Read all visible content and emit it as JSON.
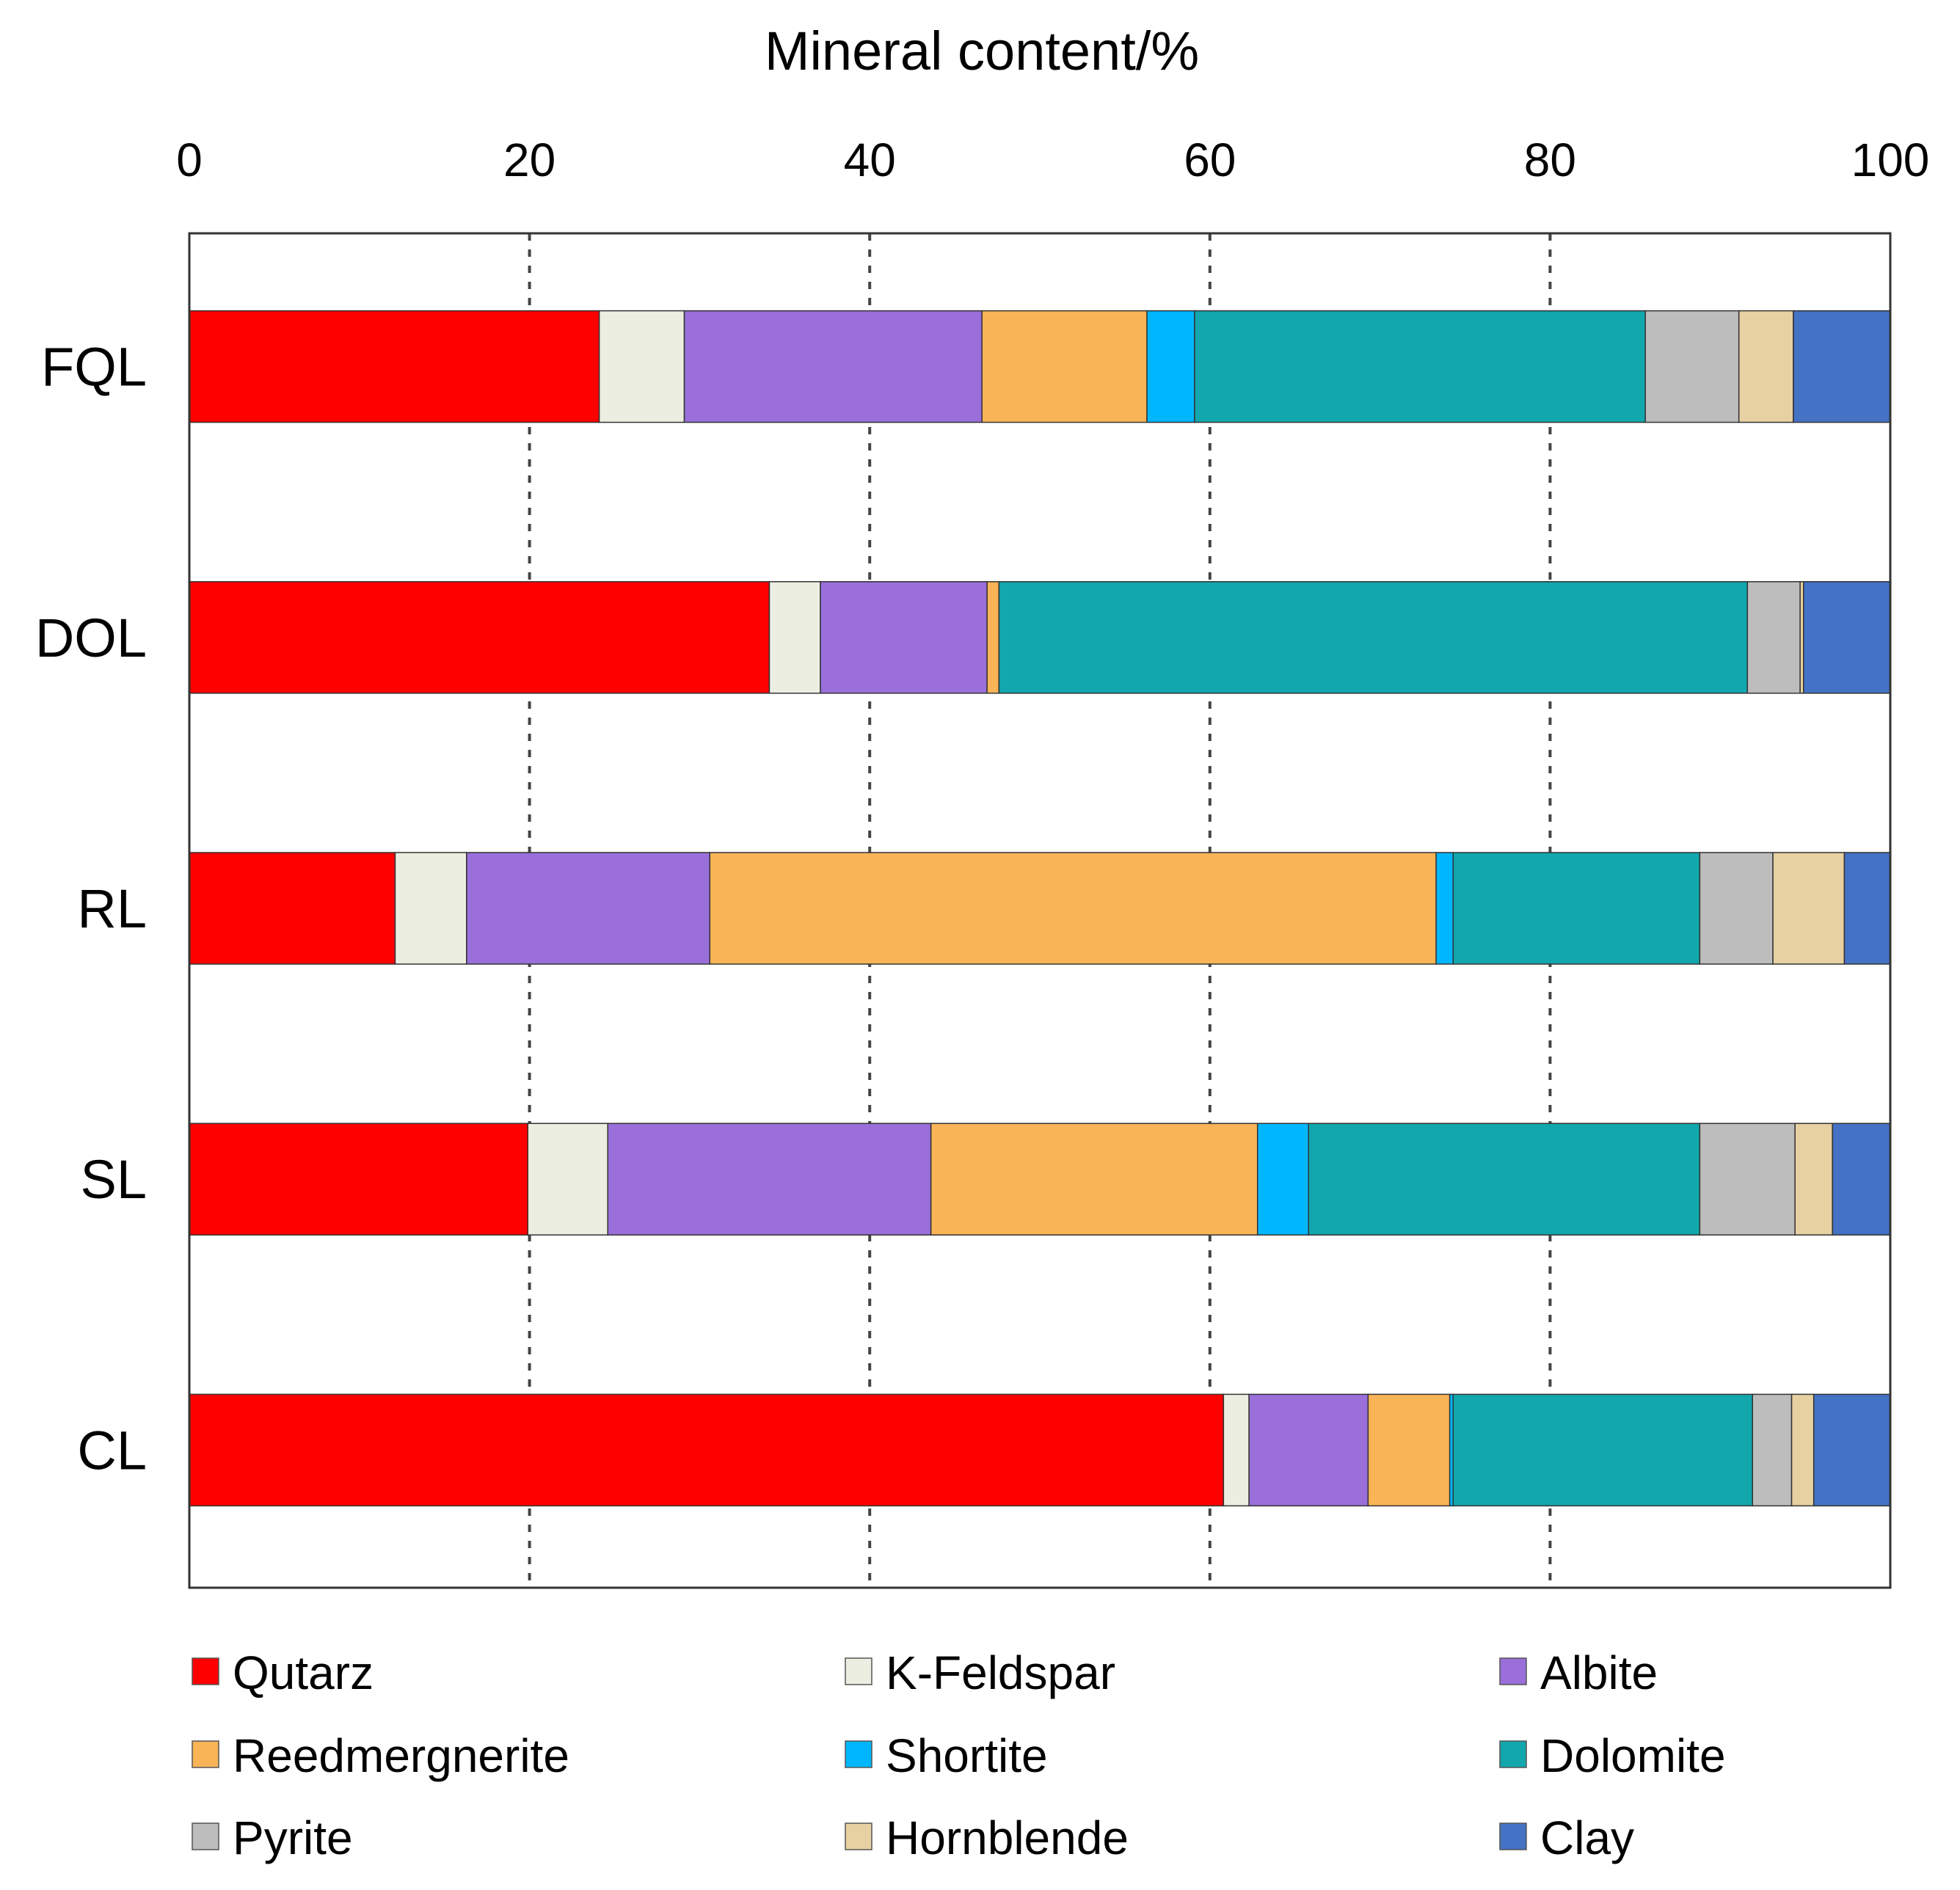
{
  "chart_data": {
    "type": "bar",
    "orientation": "horizontal",
    "stacked": true,
    "xlabel": "Mineral content/%",
    "xlim": [
      0,
      100
    ],
    "xticks": [
      0,
      20,
      40,
      60,
      80,
      100
    ],
    "grid": "vertical dashed",
    "legend_position": "bottom",
    "categories": [
      "FQL",
      "DOL",
      "RL",
      "SL",
      "CL"
    ],
    "series": [
      {
        "name": "Qutarz",
        "color": "#ff0000",
        "values": [
          24.1,
          34.1,
          12.1,
          19.9,
          60.8
        ]
      },
      {
        "name": "K-Feldspar",
        "color": "#edeee2",
        "values": [
          5.0,
          3.0,
          4.2,
          4.7,
          1.5
        ]
      },
      {
        "name": "Albite",
        "color": "#9a6fda",
        "values": [
          17.5,
          9.8,
          14.3,
          19.0,
          7.0
        ]
      },
      {
        "name": "Reedmergnerite",
        "color": "#f9b458",
        "values": [
          9.7,
          0.7,
          42.7,
          19.2,
          4.8
        ]
      },
      {
        "name": "Shortite",
        "color": "#00b7ff",
        "values": [
          2.8,
          0.0,
          1.0,
          3.0,
          0.2
        ]
      },
      {
        "name": "Dolomite",
        "color": "#12a7ad",
        "values": [
          26.5,
          44.0,
          14.5,
          23.0,
          17.6
        ]
      },
      {
        "name": "Pyrite",
        "color": "#bdbdbd",
        "values": [
          5.5,
          3.1,
          4.3,
          5.6,
          2.3
        ]
      },
      {
        "name": "Hornblende",
        "color": "#e7d1a2",
        "values": [
          3.2,
          0.2,
          4.2,
          2.2,
          1.3
        ]
      },
      {
        "name": "Clay",
        "color": "#4472c4",
        "values": [
          5.7,
          5.1,
          2.7,
          3.4,
          4.5
        ]
      }
    ]
  }
}
